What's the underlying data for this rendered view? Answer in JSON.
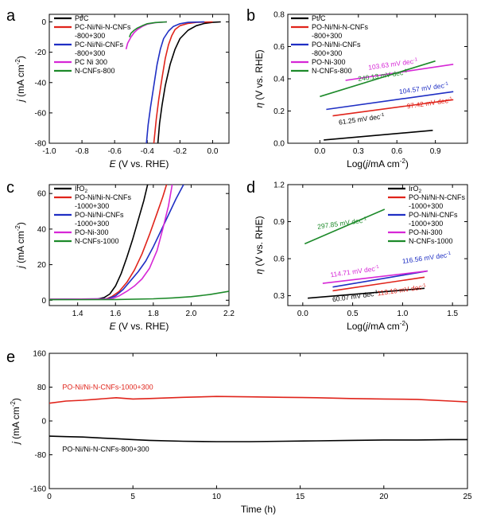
{
  "figure": {
    "panels": [
      "a",
      "b",
      "c",
      "d",
      "e"
    ]
  },
  "chart_data": [
    {
      "panel": "a",
      "type": "line",
      "xlabel_var": "E",
      "xlabel_rest": " (V vs. RHE)",
      "ylabel_var": "j",
      "ylabel_rest": " (mA cm",
      "ylabel_sup": "-2",
      "ylabel_end": ")",
      "xlim": [
        -1.0,
        0.1
      ],
      "ylim": [
        -80,
        5
      ],
      "xticks": [
        -1.0,
        -0.8,
        -0.6,
        -0.4,
        -0.2,
        0.0
      ],
      "xtick_labels": [
        "-1.0",
        "-0.8",
        "-0.6",
        "-0.4",
        "-0.2",
        "0.0"
      ],
      "yticks": [
        0,
        -20,
        -40,
        -60,
        -80
      ],
      "ytick_labels": [
        "0",
        "-20",
        "-40",
        "-60",
        "-80"
      ],
      "legend_position": "top-left",
      "series": [
        {
          "name": "Pt/C",
          "color": "#000000",
          "x": [
            0.05,
            0.0,
            -0.05,
            -0.1,
            -0.15,
            -0.2,
            -0.23,
            -0.26,
            -0.29,
            -0.31,
            -0.325,
            -0.335
          ],
          "y": [
            0,
            -0.3,
            -1.0,
            -2.5,
            -5.5,
            -11,
            -18,
            -28,
            -42,
            -55,
            -67,
            -80
          ]
        },
        {
          "name": "PC-Ni/Ni-N-CNFs",
          "name2": "-800+300",
          "color": "#e0241b",
          "x": [
            0.0,
            -0.1,
            -0.15,
            -0.2,
            -0.23,
            -0.25,
            -0.27,
            -0.29,
            -0.31,
            -0.33,
            -0.345,
            -0.36
          ],
          "y": [
            0,
            -0.3,
            -1.0,
            -2.5,
            -5,
            -9,
            -15,
            -24,
            -37,
            -51,
            -64,
            -80
          ]
        },
        {
          "name": "PC-Ni/Ni-CNFs",
          "name2": "-800+300",
          "color": "#1f2fc4",
          "x": [
            -0.05,
            -0.15,
            -0.2,
            -0.24,
            -0.27,
            -0.3,
            -0.32,
            -0.34,
            -0.36,
            -0.38,
            -0.395,
            -0.405
          ],
          "y": [
            0,
            -0.3,
            -1.2,
            -3,
            -6,
            -11,
            -18,
            -28,
            -42,
            -56,
            -68,
            -80
          ]
        },
        {
          "name": "PC Ni 300",
          "color": "#d627d6",
          "x": [
            -0.28,
            -0.35,
            -0.4,
            -0.43,
            -0.46,
            -0.48,
            -0.5,
            -0.52,
            -0.53
          ],
          "y": [
            0,
            -0.5,
            -1.5,
            -3,
            -5,
            -7,
            -10,
            -14,
            -18
          ]
        },
        {
          "name": "N-CNFs-800",
          "color": "#1d8a2a",
          "x": [
            -0.28,
            -0.35,
            -0.4,
            -0.43,
            -0.46,
            -0.48,
            -0.5,
            -0.51
          ],
          "y": [
            0,
            -0.4,
            -1.2,
            -2.5,
            -4,
            -5.5,
            -7.5,
            -10
          ]
        }
      ]
    },
    {
      "panel": "b",
      "type": "line",
      "xlabel_var": "Log(",
      "xlabel_rest": "j",
      "xlabel_unit": "/mA cm",
      "xlabel_sup": "-2",
      "xlabel_end": ")",
      "ylabel_var": "η",
      "ylabel_rest": " (V vs. RHE)",
      "xlim": [
        -0.25,
        1.15
      ],
      "ylim": [
        0.0,
        0.8
      ],
      "xticks": [
        0.0,
        0.3,
        0.6,
        0.9
      ],
      "xtick_labels": [
        "0.0",
        "0.3",
        "0.6",
        "0.9"
      ],
      "yticks": [
        0.0,
        0.2,
        0.4,
        0.6,
        0.8
      ],
      "ytick_labels": [
        "0.0",
        "0.2",
        "0.4",
        "0.6",
        "0.8"
      ],
      "legend_position": "top-left",
      "series": [
        {
          "name": "Pt/C",
          "color": "#000000",
          "x": [
            0.03,
            0.88
          ],
          "y": [
            0.02,
            0.08
          ],
          "annotation": "61.25 mV dec",
          "ann_sup": "-1",
          "ann_x": 0.15,
          "ann_y": 0.115
        },
        {
          "name": "PO-Ni/Ni-N-CNFs",
          "name2": "-800+300",
          "color": "#e0241b",
          "x": [
            0.1,
            1.04
          ],
          "y": [
            0.17,
            0.27
          ],
          "annotation": "97.42 mV dec",
          "ann_sup": "-1",
          "ann_x": 0.68,
          "ann_y": 0.215
        },
        {
          "name": "PO-Ni/Ni-CNFs",
          "name2": "-800+300",
          "color": "#1f2fc4",
          "x": [
            0.05,
            1.04
          ],
          "y": [
            0.21,
            0.32
          ],
          "annotation": "104.57 mV dec",
          "ann_sup": "-1",
          "ann_x": 0.62,
          "ann_y": 0.305
        },
        {
          "name": "PO-Ni-300",
          "color": "#d627d6",
          "x": [
            0.2,
            1.04
          ],
          "y": [
            0.39,
            0.49
          ],
          "annotation": "103.63 mV dec",
          "ann_sup": "-1",
          "ann_x": 0.38,
          "ann_y": 0.455
        },
        {
          "name": "N-CNFs-800",
          "color": "#1d8a2a",
          "x": [
            0.0,
            0.9
          ],
          "y": [
            0.29,
            0.51
          ],
          "annotation": "240.13 mV dec",
          "ann_sup": "-1",
          "ann_x": 0.3,
          "ann_y": 0.385
        }
      ]
    },
    {
      "panel": "c",
      "type": "line",
      "xlabel_var": "E",
      "xlabel_rest": " (V vs. RHE)",
      "ylabel_var": "j",
      "ylabel_rest": " (mA cm",
      "ylabel_sup": "-2",
      "ylabel_end": ")",
      "xlim": [
        1.25,
        2.2
      ],
      "ylim": [
        -3,
        65
      ],
      "xticks": [
        1.4,
        1.6,
        1.8,
        2.0,
        2.2
      ],
      "xtick_labels": [
        "1.4",
        "1.6",
        "1.8",
        "2.0",
        "2.2"
      ],
      "yticks": [
        0,
        20,
        40,
        60
      ],
      "ytick_labels": [
        "0",
        "20",
        "40",
        "60"
      ],
      "legend_position": "top-left",
      "series": [
        {
          "name": "IrO",
          "name_sub": "2",
          "color": "#000000",
          "x": [
            1.25,
            1.5,
            1.54,
            1.57,
            1.6,
            1.63,
            1.66,
            1.69,
            1.72,
            1.75,
            1.77
          ],
          "y": [
            0.5,
            0.6,
            1.5,
            3.5,
            8,
            15,
            24,
            34,
            45,
            56,
            65
          ]
        },
        {
          "name": "PO-Ni/Ni-N-CNFs",
          "name2": "-1000+300",
          "color": "#e0241b",
          "x": [
            1.25,
            1.55,
            1.58,
            1.62,
            1.66,
            1.7,
            1.74,
            1.78,
            1.82,
            1.85,
            1.87
          ],
          "y": [
            0.5,
            0.7,
            2,
            5,
            10,
            17,
            26,
            37,
            49,
            58,
            65
          ]
        },
        {
          "name": "PO-Ni/Ni-CNFs",
          "name2": "-1000+300",
          "color": "#1f2fc4",
          "x": [
            1.25,
            1.56,
            1.6,
            1.64,
            1.68,
            1.72,
            1.76,
            1.8,
            1.84,
            1.88,
            1.92,
            1.96
          ],
          "y": [
            0.5,
            0.8,
            2.5,
            6,
            11,
            16,
            22,
            30,
            39,
            48,
            57,
            65
          ]
        },
        {
          "name": "PO-Ni-300",
          "color": "#d627d6",
          "x": [
            1.25,
            1.58,
            1.62,
            1.66,
            1.7,
            1.74,
            1.78,
            1.82,
            1.85,
            1.88,
            1.9
          ],
          "y": [
            0.5,
            0.8,
            2.5,
            5,
            8,
            12,
            18,
            28,
            40,
            53,
            65
          ]
        },
        {
          "name": "N-CNFs-1000",
          "color": "#1d8a2a",
          "x": [
            1.25,
            1.6,
            1.8,
            1.9,
            2.0,
            2.1,
            2.2
          ],
          "y": [
            0.3,
            0.4,
            0.8,
            1.3,
            2.0,
            3.2,
            5.0
          ]
        }
      ]
    },
    {
      "panel": "d",
      "type": "line",
      "xlabel_var": "Log(",
      "xlabel_rest": "j",
      "xlabel_unit": "/mA cm",
      "xlabel_sup": "-2",
      "xlabel_end": ")",
      "ylabel_var": "η",
      "ylabel_rest": " (V vs. RHE)",
      "xlim": [
        -0.15,
        1.65
      ],
      "ylim": [
        0.22,
        1.2
      ],
      "xticks": [
        0.0,
        0.5,
        1.0,
        1.5
      ],
      "xtick_labels": [
        "0.0",
        "0.5",
        "1.0",
        "1.5"
      ],
      "yticks": [
        0.3,
        0.6,
        0.9,
        1.2
      ],
      "ytick_labels": [
        "0.3",
        "0.6",
        "0.9",
        "1.2"
      ],
      "legend_position": "top-right",
      "series": [
        {
          "name": "IrO",
          "name_sub": "2",
          "color": "#000000",
          "x": [
            0.05,
            1.22
          ],
          "y": [
            0.28,
            0.36
          ],
          "annotation": "60.07 mV dec",
          "ann_sup": "-1",
          "ann_x": 0.3,
          "ann_y": 0.25
        },
        {
          "name": "PO-Ni/Ni-N-CNFs",
          "name2": "-1000+300",
          "color": "#e0241b",
          "x": [
            0.3,
            1.22
          ],
          "y": [
            0.34,
            0.45
          ],
          "annotation": "113.10 mV dec",
          "ann_sup": "-1",
          "ann_x": 0.75,
          "ann_y": 0.3
        },
        {
          "name": "PO-Ni/Ni-CNFs",
          "name2": "-1000+300",
          "color": "#1f2fc4",
          "x": [
            0.3,
            1.25
          ],
          "y": [
            0.37,
            0.5
          ],
          "annotation": "116.56 mV dec",
          "ann_sup": "-1",
          "ann_x": 1.0,
          "ann_y": 0.56
        },
        {
          "name": "PO-Ni-300",
          "color": "#d627d6",
          "x": [
            0.2,
            1.25
          ],
          "y": [
            0.4,
            0.5
          ],
          "annotation": "114.71 mV dec",
          "ann_sup": "-1",
          "ann_x": 0.28,
          "ann_y": 0.45
        },
        {
          "name": "N-CNFs-1000",
          "color": "#1d8a2a",
          "x": [
            0.02,
            0.82
          ],
          "y": [
            0.72,
            1.0
          ],
          "annotation": "297.85 mV dec",
          "ann_sup": "-1",
          "ann_x": 0.15,
          "ann_y": 0.84
        }
      ]
    },
    {
      "panel": "e",
      "type": "line",
      "xlabel_var": "",
      "xlabel_rest": "Time (h)",
      "ylabel_var": "j",
      "ylabel_rest": " (mA cm",
      "ylabel_sup": "-2",
      "ylabel_end": ")",
      "xlim": [
        0,
        25
      ],
      "ylim": [
        -160,
        160
      ],
      "xticks": [
        0,
        5,
        10,
        15,
        20,
        25
      ],
      "xtick_labels": [
        "0",
        "5",
        "10",
        "15",
        "20",
        "25"
      ],
      "yticks": [
        160,
        80,
        0,
        -80,
        -160
      ],
      "ytick_labels": [
        "160",
        "80",
        "0",
        "-80",
        "-160"
      ],
      "series": [
        {
          "name": "PO-Ni/Ni-N-CNFs-1000+300",
          "color": "#e0241b",
          "x": [
            0,
            1,
            2,
            3,
            4,
            5,
            6,
            8,
            10,
            12,
            14,
            16,
            18,
            20,
            22,
            24,
            25
          ],
          "y": [
            42,
            47,
            49,
            52,
            55,
            52,
            53,
            56,
            58,
            57,
            56,
            55,
            53,
            52,
            51,
            47,
            45
          ],
          "label_x": 0.4,
          "label_y": 74,
          "label_color": "#e0241b"
        },
        {
          "name": "PO-Ni/Ni-N-CNFs-800+300",
          "color": "#000000",
          "x": [
            0,
            1,
            2,
            3,
            4,
            5,
            6,
            8,
            10,
            12,
            14,
            16,
            18,
            20,
            22,
            24,
            25
          ],
          "y": [
            -36,
            -37,
            -38,
            -40,
            -42,
            -44,
            -46,
            -48,
            -49,
            -49,
            -48,
            -47,
            -46,
            -45,
            -45,
            -44,
            -44
          ],
          "label_x": 0.4,
          "label_y": -72,
          "label_color": "#000000"
        }
      ]
    }
  ]
}
